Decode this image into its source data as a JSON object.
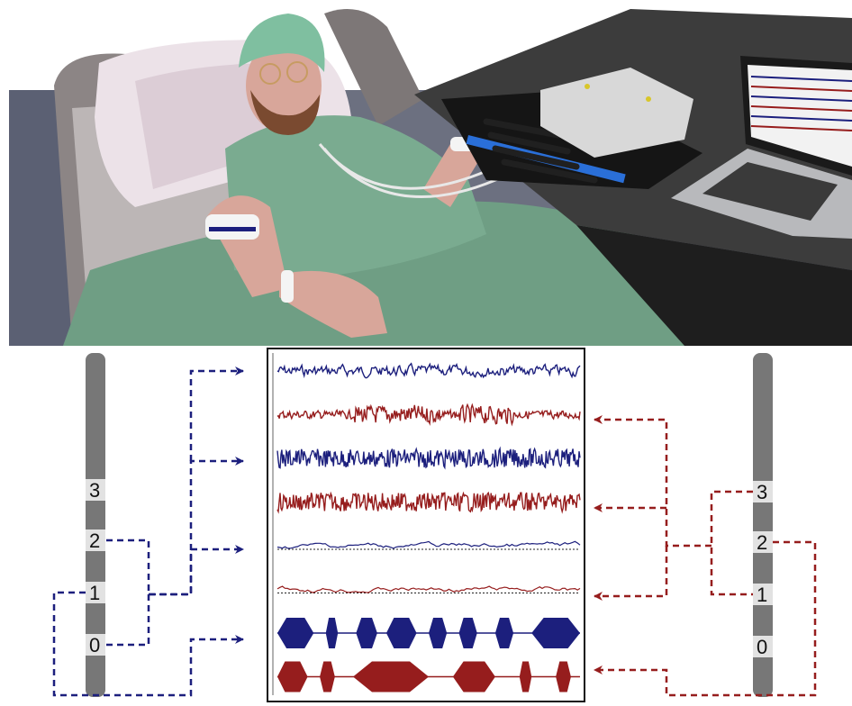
{
  "colors": {
    "wall": "#9fa0a2",
    "floor": "#5b6073",
    "blue_signal": "#1c1f7d",
    "red_signal": "#961d1d",
    "gown": "#6f9e84",
    "cap": "#7fbfa0",
    "skin": "#d8a69a",
    "electrode_gray": "#777777",
    "contact_light": "#e2e2e2",
    "desk": "#2a2a2a",
    "laptop": "#b8b9bc",
    "amplifier": "#d8d8d8",
    "connector_blue": "#2a6fd8"
  },
  "scene": {
    "patient_figure": "hospital-bed-patient",
    "equipment": [
      "amplifier-box",
      "headbox",
      "laptop"
    ]
  },
  "left_electrode": {
    "contacts": [
      "3",
      "2",
      "1",
      "0"
    ],
    "wire_color": "#1c1f7d"
  },
  "right_electrode": {
    "contacts": [
      "3",
      "2",
      "1",
      "0"
    ],
    "wire_color": "#961d1d"
  },
  "signal_panel": {
    "traces": [
      {
        "channel": 1,
        "color": "blue",
        "kind": "broadband"
      },
      {
        "channel": 2,
        "color": "red",
        "kind": "bursty"
      },
      {
        "channel": 3,
        "color": "blue",
        "kind": "high-frequency"
      },
      {
        "channel": 4,
        "color": "red",
        "kind": "high-frequency"
      },
      {
        "channel": 5,
        "color": "blue",
        "kind": "slow-wave"
      },
      {
        "channel": 6,
        "color": "red",
        "kind": "slow-wave"
      },
      {
        "channel": 7,
        "color": "blue",
        "kind": "envelope"
      },
      {
        "channel": 8,
        "color": "red",
        "kind": "envelope"
      }
    ],
    "blue_arrow_targets": [
      1,
      3,
      5,
      7
    ],
    "red_arrow_targets": [
      2,
      4,
      6,
      8
    ]
  }
}
